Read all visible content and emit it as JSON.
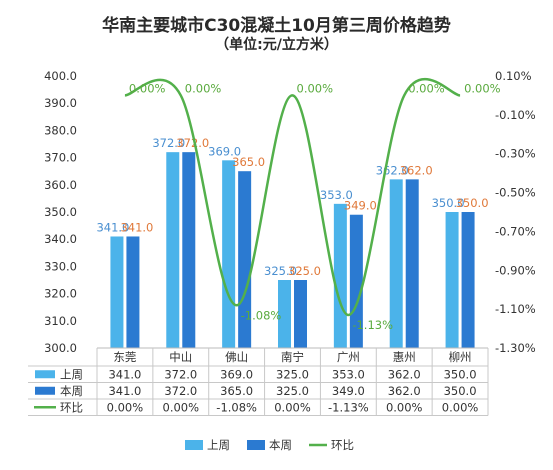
{
  "chart_data": {
    "type": "bar",
    "title": "华南主要城市C30混凝土10月第三周价格趋势",
    "subtitle": "（单位:元/立方米）",
    "categories": [
      "东莞",
      "中山",
      "佛山",
      "南宁",
      "广州",
      "惠州",
      "柳州"
    ],
    "series": [
      {
        "name": "上周",
        "type": "bar",
        "axis": "left",
        "color": "#4bb3ea",
        "label_color": "#4a8fd0",
        "values": [
          341.0,
          372.0,
          369.0,
          325.0,
          353.0,
          362.0,
          350.0
        ],
        "labels": [
          "341.0",
          "372.0",
          "369.0",
          "325.0",
          "353.0",
          "362.0",
          "350.0"
        ]
      },
      {
        "name": "本周",
        "type": "bar",
        "axis": "left",
        "color": "#2b7ad1",
        "label_color": "#e0793a",
        "values": [
          341.0,
          372.0,
          365.0,
          325.0,
          349.0,
          362.0,
          350.0
        ],
        "labels": [
          "341.0",
          "372.0",
          "365.0",
          "325.0",
          "349.0",
          "362.0",
          "350.0"
        ]
      },
      {
        "name": "环比",
        "type": "line",
        "axis": "right",
        "color": "#53b04b",
        "label_color": "#5aaa3e",
        "values": [
          0.0,
          0.0,
          -1.08,
          0.0,
          -1.13,
          0.0,
          0.0
        ],
        "labels": [
          "0.00%",
          "0.00%",
          "-1.08%",
          "0.00%",
          "-1.13%",
          "0.00%",
          "0.00%"
        ]
      }
    ],
    "y_left": {
      "range": [
        300,
        400
      ],
      "ticks": [
        "300.0",
        "310.0",
        "320.0",
        "330.0",
        "340.0",
        "350.0",
        "360.0",
        "370.0",
        "380.0",
        "390.0",
        "400.0"
      ]
    },
    "y_right": {
      "range": [
        -1.3,
        0.1
      ],
      "ticks": [
        "-1.30%",
        "-1.10%",
        "-0.90%",
        "-0.70%",
        "-0.50%",
        "-0.30%",
        "-0.10%",
        "0.10%"
      ]
    },
    "data_table": {
      "rows": [
        {
          "name": "上周",
          "cells": [
            "341.0",
            "372.0",
            "369.0",
            "325.0",
            "353.0",
            "362.0",
            "350.0"
          ]
        },
        {
          "name": "本周",
          "cells": [
            "341.0",
            "372.0",
            "365.0",
            "325.0",
            "349.0",
            "362.0",
            "350.0"
          ]
        },
        {
          "name": "环比",
          "cells": [
            "0.00%",
            "0.00%",
            "-1.08%",
            "0.00%",
            "-1.13%",
            "0.00%",
            "0.00%"
          ]
        }
      ]
    },
    "legend": {
      "position": "bottom",
      "items": [
        "上周",
        "本周",
        "环比"
      ]
    },
    "grid": false
  }
}
